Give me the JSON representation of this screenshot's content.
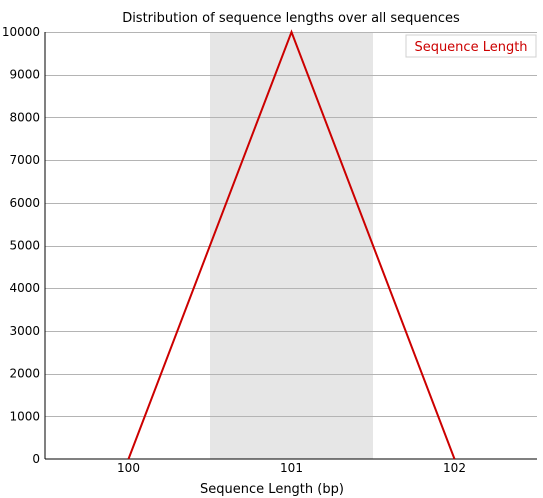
{
  "chart_data": {
    "type": "line",
    "title": "Distribution of sequence lengths over all sequences",
    "xlabel": "Sequence Length (bp)",
    "ylabel": "",
    "categories": [
      "100",
      "101",
      "102"
    ],
    "series": [
      {
        "name": "Sequence Length",
        "values": [
          0,
          10000,
          0
        ],
        "color": "#cc0000"
      }
    ],
    "ylim": [
      0,
      10000
    ],
    "yticks": [
      0,
      1000,
      2000,
      3000,
      4000,
      5000,
      6000,
      7000,
      8000,
      9000,
      10000
    ],
    "grid": true,
    "highlight_band_category": "101",
    "band_color": "#e6e6e6",
    "legend_position": "top-right"
  }
}
